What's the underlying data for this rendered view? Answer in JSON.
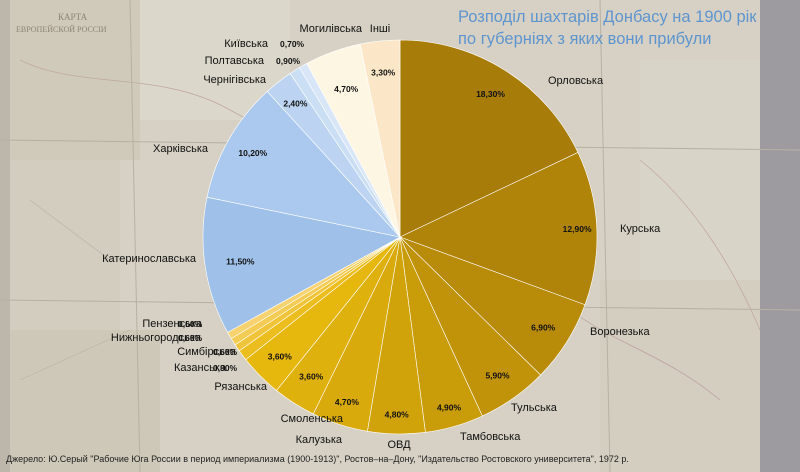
{
  "title_line1": "Розподіл шахтарів Донбасу на 1900 рік",
  "title_line2": "по губерніях з яких вони прибули",
  "source_note": "Джерело: Ю.Серый \"Рабочие Юга России в период империализма (1900-1913)\", Ростов–на–Дону, \"Издательство Ростовского университета\", 1972 р.",
  "background_map_text": [
    "КАРТА",
    "ЕВРОПЕЙСКОЙ РОССІИ"
  ],
  "colors": {
    "title": "#5e95cf",
    "background": "#d8d3c7"
  },
  "chart_data": {
    "type": "pie",
    "title": "Розподіл шахтарів Донбасу на 1900 рік по губерніях з яких вони прибули",
    "unit": "%",
    "start": "12 o'clock",
    "direction": "clockwise",
    "slices": [
      {
        "label": "Орловська",
        "value": 18.3,
        "value_label": "18,30%",
        "color": "#a77c08"
      },
      {
        "label": "Курська",
        "value": 12.9,
        "value_label": "12,90%",
        "color": "#b08408"
      },
      {
        "label": "Воронезька",
        "value": 6.9,
        "value_label": "6,90%",
        "color": "#b88b08"
      },
      {
        "label": "Тульська",
        "value": 5.9,
        "value_label": "5,90%",
        "color": "#c19309"
      },
      {
        "label": "Тамбовська",
        "value": 4.9,
        "value_label": "4,90%",
        "color": "#c99c0a"
      },
      {
        "label": "ОВД",
        "value": 4.8,
        "value_label": "4,80%",
        "color": "#d1a30a"
      },
      {
        "label": "Калузька",
        "value": 4.7,
        "value_label": "4,70%",
        "color": "#d8aa0b"
      },
      {
        "label": "Смоленська",
        "value": 3.6,
        "value_label": "3,60%",
        "color": "#dfb10c"
      },
      {
        "label": "Рязанська",
        "value": 3.6,
        "value_label": "3,60%",
        "color": "#e6b70d"
      },
      {
        "label": "Казанська",
        "value": 0.9,
        "value_label": "0,90%",
        "color": "#ecbd1e"
      },
      {
        "label": "Симбірська",
        "value": 0.6,
        "value_label": "0,60%",
        "color": "#f0c43a"
      },
      {
        "label": "Нижньогородська",
        "value": 0.6,
        "value_label": "0,60%",
        "color": "#f3cb55"
      },
      {
        "label": "Пензенська",
        "value": 0.6,
        "value_label": "0,60%",
        "color": "#f6d270"
      },
      {
        "label": "Катеринославська",
        "value": 11.5,
        "value_label": "11,50%",
        "color": "#9ec0e9"
      },
      {
        "label": "Харківська",
        "value": 10.2,
        "value_label": "10,20%",
        "color": "#abc9ee"
      },
      {
        "label": "Чернігівська",
        "value": 2.4,
        "value_label": "2,40%",
        "color": "#bcd4f1"
      },
      {
        "label": "Полтавська",
        "value": 0.9,
        "value_label": "0,90%",
        "color": "#cadef4"
      },
      {
        "label": "Київська",
        "value": 0.7,
        "value_label": "0,70%",
        "color": "#d8e6f7"
      },
      {
        "label": "Могилівська",
        "value": 4.7,
        "value_label": "4,70%",
        "color": "#fdf6e3"
      },
      {
        "label": "Інші",
        "value": 3.3,
        "value_label": "3,30%",
        "color": "#fbe7c8"
      }
    ]
  }
}
